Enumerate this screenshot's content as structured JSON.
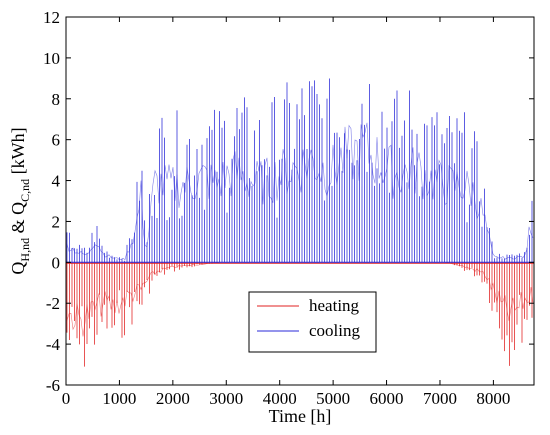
{
  "chart_data": {
    "type": "line",
    "xlabel": "Time [h]",
    "ylabel_parts": {
      "q1": "Q",
      "sub1": "H,nd",
      "amp": " & Q",
      "sub2": "C,nd",
      "unit": " [kWh]"
    },
    "xlim": [
      0,
      8760
    ],
    "ylim": [
      -6,
      12
    ],
    "x_ticks": [
      0,
      1000,
      2000,
      3000,
      4000,
      5000,
      6000,
      7000,
      8000
    ],
    "y_ticks": [
      -6,
      -4,
      -2,
      0,
      2,
      4,
      6,
      8,
      10,
      12
    ],
    "grid": false,
    "legend_position": "lower-center",
    "series": [
      {
        "name": "heating",
        "color": "#e02020",
        "envelope_x": [
          0,
          150,
          300,
          450,
          600,
          750,
          900,
          1050,
          1200,
          1400,
          1550,
          1700,
          1900,
          2100,
          2300,
          2500,
          2700,
          2900,
          7100,
          7300,
          7500,
          7700,
          7850,
          8000,
          8150,
          8300,
          8450,
          8600,
          8760
        ],
        "envelope_y": [
          -4.8,
          -5.4,
          -5.7,
          -4.9,
          -4.3,
          -3.9,
          -4.4,
          -3.8,
          -3.2,
          -2.7,
          -1.6,
          -0.9,
          -0.6,
          -0.4,
          -0.3,
          -0.2,
          -0.1,
          0,
          0,
          -0.2,
          -0.5,
          -0.8,
          -1.2,
          -2.8,
          -4.2,
          -5.1,
          -4.5,
          -3.6,
          -3.0
        ]
      },
      {
        "name": "cooling",
        "color": "#2a2ad8",
        "envelope_x": [
          0,
          100,
          250,
          400,
          550,
          700,
          900,
          1100,
          1300,
          1400,
          1500,
          1650,
          1800,
          2000,
          2200,
          2400,
          2600,
          2800,
          3000,
          3200,
          3400,
          3600,
          3800,
          4000,
          4200,
          4400,
          4600,
          4800,
          5000,
          5200,
          5400,
          5600,
          5700,
          5800,
          6000,
          6200,
          6400,
          6600,
          6800,
          7000,
          7200,
          7400,
          7600,
          7800,
          8000,
          8300,
          8600,
          8700,
          8760
        ],
        "envelope_y": [
          1.7,
          1.4,
          0.9,
          0.7,
          2.3,
          0.8,
          0.4,
          0.3,
          3.0,
          6.6,
          0.8,
          7.6,
          7.6,
          7.4,
          7.5,
          7.9,
          8.2,
          7.6,
          8.4,
          8.7,
          8.0,
          7.8,
          8.0,
          8.6,
          9.0,
          9.4,
          10.0,
          9.1,
          9.0,
          10.2,
          10.6,
          11.2,
          10.4,
          10.1,
          9.2,
          8.6,
          8.8,
          9.0,
          8.1,
          7.8,
          7.5,
          7.6,
          7.0,
          4.8,
          0.5,
          0.4,
          0.6,
          3.9,
          2.4
        ]
      }
    ]
  }
}
